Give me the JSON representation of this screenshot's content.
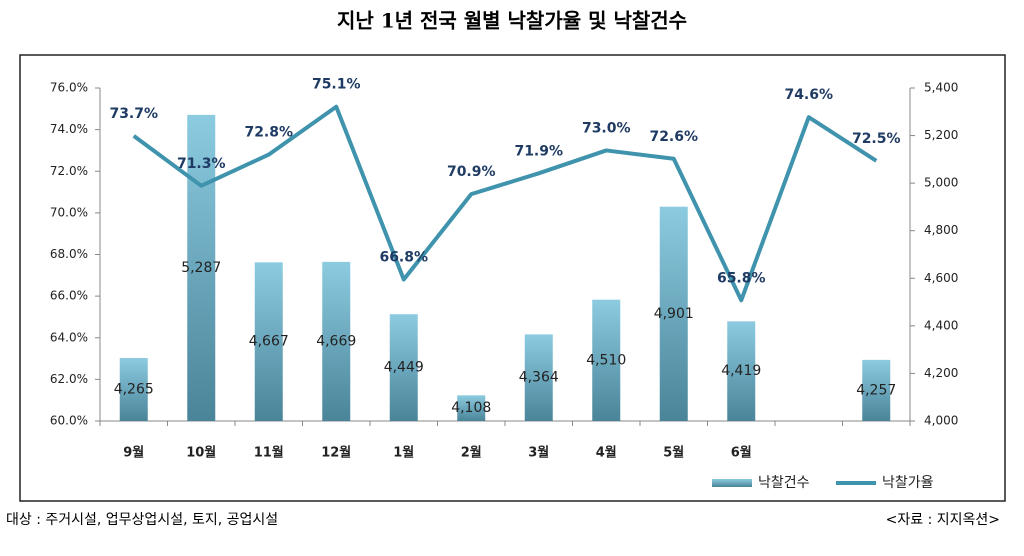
{
  "chart_data": {
    "type": "bar-line",
    "title": "지난 1년 전국 월별 낙찰가율 및 낙찰건수",
    "categories": [
      "9월",
      "10월",
      "11월",
      "12월",
      "1월",
      "2월",
      "3월",
      "4월",
      "5월",
      "6월",
      null,
      null
    ],
    "series": [
      {
        "name": "낙찰건수",
        "type": "bar",
        "axis": "y2",
        "color": "#8ccbe0",
        "values": [
          4265,
          5287,
          4667,
          4669,
          4449,
          4108,
          4364,
          4510,
          4901,
          4419,
          null,
          4257
        ],
        "value_labels": [
          "4,265",
          "5,287",
          "4,667",
          "4,669",
          "4,449",
          "4,108",
          "4,364",
          "4,510",
          "4,901",
          "4,419",
          null,
          "4,257"
        ]
      },
      {
        "name": "낙찰가율",
        "type": "line",
        "axis": "y",
        "color": "#3f93ad",
        "values": [
          73.7,
          71.3,
          72.8,
          75.1,
          66.8,
          70.9,
          71.9,
          73.0,
          72.6,
          65.8,
          74.6,
          72.5
        ],
        "value_labels": [
          "73.7%",
          "71.3%",
          "72.8%",
          "75.1%",
          "66.8%",
          "70.9%",
          "71.9%",
          "73.0%",
          "72.6%",
          "65.8%",
          "74.6%",
          "72.5%"
        ]
      }
    ],
    "ylim": [
      60,
      76
    ],
    "yticks": [
      {
        "value": 60,
        "label": "60.0%"
      },
      {
        "value": 62,
        "label": "62.0%"
      },
      {
        "value": 64,
        "label": "64.0%"
      },
      {
        "value": 66,
        "label": "66.0%"
      },
      {
        "value": 68,
        "label": "68.0%"
      },
      {
        "value": 70,
        "label": "70.0%"
      },
      {
        "value": 72,
        "label": "72.0%"
      },
      {
        "value": 74,
        "label": "74.0%"
      },
      {
        "value": 76,
        "label": "76.0%"
      }
    ],
    "y2lim": [
      4000,
      5400
    ],
    "y2ticks": [
      {
        "value": 4000,
        "label": "4,000"
      },
      {
        "value": 4200,
        "label": "4,200"
      },
      {
        "value": 4400,
        "label": "4,400"
      },
      {
        "value": 4600,
        "label": "4,600"
      },
      {
        "value": 4800,
        "label": "4,800"
      },
      {
        "value": 5000,
        "label": "5,000"
      },
      {
        "value": 5200,
        "label": "5,200"
      },
      {
        "value": 5400,
        "label": "5,400"
      }
    ],
    "grid": false,
    "legend": "bottom-right",
    "annotations": [
      "대상 : 주거시설, 업무상업시설, 토지, 공업시설",
      "<자료 : 지지옥션>"
    ]
  }
}
